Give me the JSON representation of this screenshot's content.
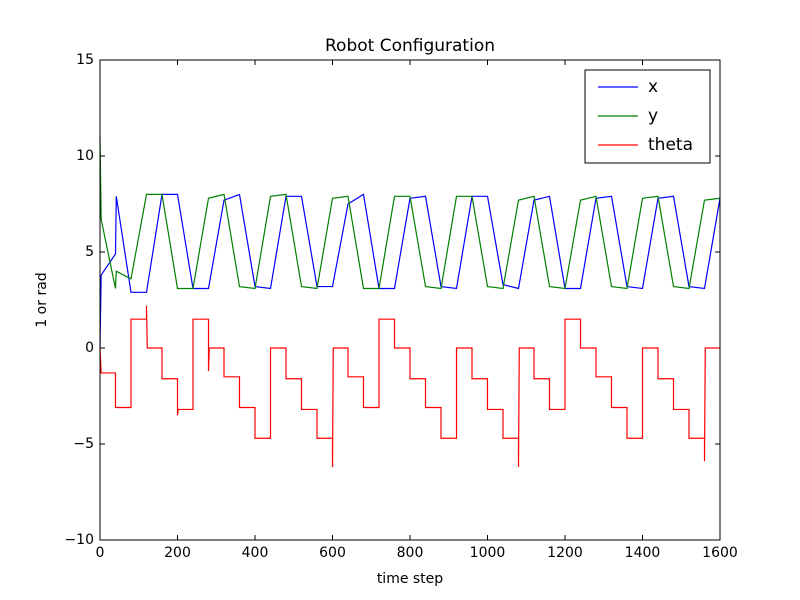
{
  "chart_data": {
    "type": "line",
    "title": "Robot Configuration",
    "x_label": "time step",
    "y_label": "1 or rad",
    "xlim": [
      0,
      1600
    ],
    "ylim": [
      -10,
      15
    ],
    "xticks": [
      0,
      200,
      400,
      600,
      800,
      1000,
      1200,
      1400,
      1600
    ],
    "yticks": [
      {
        "value": -10,
        "label": "−10"
      },
      {
        "value": -5,
        "label": "−5"
      },
      0,
      5,
      10,
      15
    ],
    "grid": false,
    "legend": "upper right",
    "series": [
      {
        "name": "x",
        "color": "#0000ff",
        "x": [
          0,
          3,
          40,
          42,
          80,
          120,
          160,
          200,
          240,
          280,
          320,
          360,
          400,
          440,
          480,
          520,
          560,
          600,
          640,
          680,
          720,
          760,
          800,
          840,
          880,
          920,
          960,
          1000,
          1040,
          1080,
          1120,
          1160,
          1200,
          1240,
          1280,
          1320,
          1360,
          1400,
          1440,
          1480,
          1520,
          1560,
          1600
        ],
        "values": [
          0,
          3.8,
          4.9,
          7.9,
          2.9,
          2.9,
          8,
          8,
          3.1,
          3.1,
          7.7,
          8,
          3.2,
          3.1,
          7.9,
          7.9,
          3.2,
          3.2,
          7.5,
          8,
          3.1,
          3.1,
          7.8,
          7.9,
          3.2,
          3.1,
          7.9,
          7.9,
          3.3,
          3.1,
          7.7,
          7.9,
          3.1,
          3.1,
          7.8,
          7.9,
          3.2,
          3.1,
          7.8,
          7.9,
          3.2,
          3.1,
          7.8
        ]
      },
      {
        "name": "y",
        "color": "#008000",
        "x": [
          0,
          3,
          40,
          42,
          80,
          120,
          160,
          200,
          240,
          280,
          320,
          360,
          400,
          440,
          480,
          520,
          560,
          600,
          640,
          680,
          720,
          760,
          800,
          840,
          880,
          920,
          960,
          1000,
          1040,
          1080,
          1120,
          1160,
          1200,
          1240,
          1280,
          1320,
          1360,
          1400,
          1440,
          1480,
          1520,
          1560,
          1600
        ],
        "values": [
          11,
          6.7,
          3.1,
          4.0,
          3.6,
          8,
          8,
          3.1,
          3.1,
          7.8,
          8,
          3.2,
          3.1,
          7.9,
          8,
          3.2,
          3.1,
          7.8,
          7.9,
          3.1,
          3.1,
          7.9,
          7.9,
          3.2,
          3.1,
          7.9,
          7.9,
          3.2,
          3.1,
          7.7,
          7.9,
          3.2,
          3.1,
          7.7,
          7.9,
          3.2,
          3.1,
          7.8,
          7.9,
          3.2,
          3.1,
          7.7,
          7.8
        ]
      },
      {
        "name": "theta",
        "color": "#ff0000",
        "x": [
          0,
          3,
          40,
          40,
          80,
          80,
          120,
          120,
          122,
          160,
          160,
          200,
          200,
          202,
          240,
          240,
          280,
          280,
          282,
          320,
          320,
          360,
          360,
          400,
          400,
          440,
          440,
          480,
          480,
          520,
          520,
          560,
          560,
          600,
          600,
          602,
          640,
          640,
          680,
          680,
          720,
          720,
          760,
          760,
          800,
          800,
          840,
          840,
          880,
          880,
          920,
          920,
          960,
          960,
          1000,
          1000,
          1040,
          1040,
          1080,
          1080,
          1082,
          1120,
          1120,
          1160,
          1160,
          1200,
          1200,
          1240,
          1240,
          1280,
          1280,
          1320,
          1320,
          1360,
          1360,
          1400,
          1400,
          1440,
          1440,
          1480,
          1480,
          1520,
          1520,
          1560,
          1560,
          1562,
          1600
        ],
        "values": [
          0,
          -1.3,
          -1.3,
          -3.1,
          -3.1,
          1.5,
          1.5,
          2.2,
          0,
          0,
          -1.6,
          -1.6,
          -3.5,
          -3.2,
          -3.2,
          1.5,
          1.5,
          -1.2,
          0,
          0,
          -1.5,
          -1.5,
          -3.1,
          -3.1,
          -4.7,
          -4.7,
          0,
          0,
          -1.6,
          -1.6,
          -3.2,
          -3.2,
          -4.7,
          -4.7,
          -6.2,
          0,
          0,
          -1.5,
          -1.5,
          -3.1,
          -3.1,
          1.5,
          1.5,
          0,
          0,
          -1.6,
          -1.6,
          -3.1,
          -3.1,
          -4.7,
          -4.7,
          0,
          0,
          -1.6,
          -1.6,
          -3.2,
          -3.2,
          -4.7,
          -4.7,
          -6.2,
          0,
          0,
          -1.6,
          -1.6,
          -3.2,
          -3.2,
          1.5,
          1.5,
          0,
          0,
          -1.5,
          -1.5,
          -3.1,
          -3.1,
          -4.7,
          -4.7,
          0,
          0,
          -1.6,
          -1.6,
          -3.2,
          -3.2,
          -4.7,
          -4.7,
          -5.9,
          0,
          0
        ]
      }
    ]
  }
}
